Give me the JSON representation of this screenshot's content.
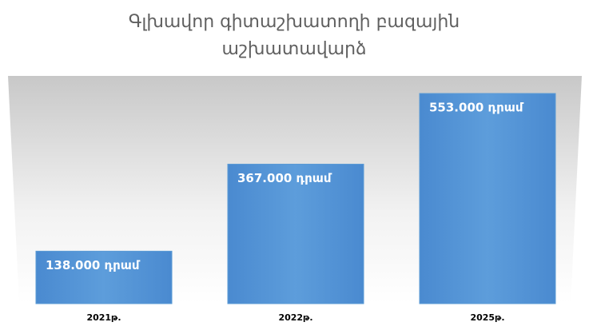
{
  "chart_data": {
    "type": "bar",
    "title": [
      "Գլխավոր գիտաշխատողի բազային",
      "աշխատավարձ"
    ],
    "categories": [
      "2021թ.",
      "2022թ.",
      "2025թ."
    ],
    "values": [
      138000,
      367000,
      553000
    ],
    "value_labels": [
      "138.000 դրամ",
      "367.000 դրամ",
      "553.000 դրամ"
    ],
    "color": "#5b9bd5"
  }
}
